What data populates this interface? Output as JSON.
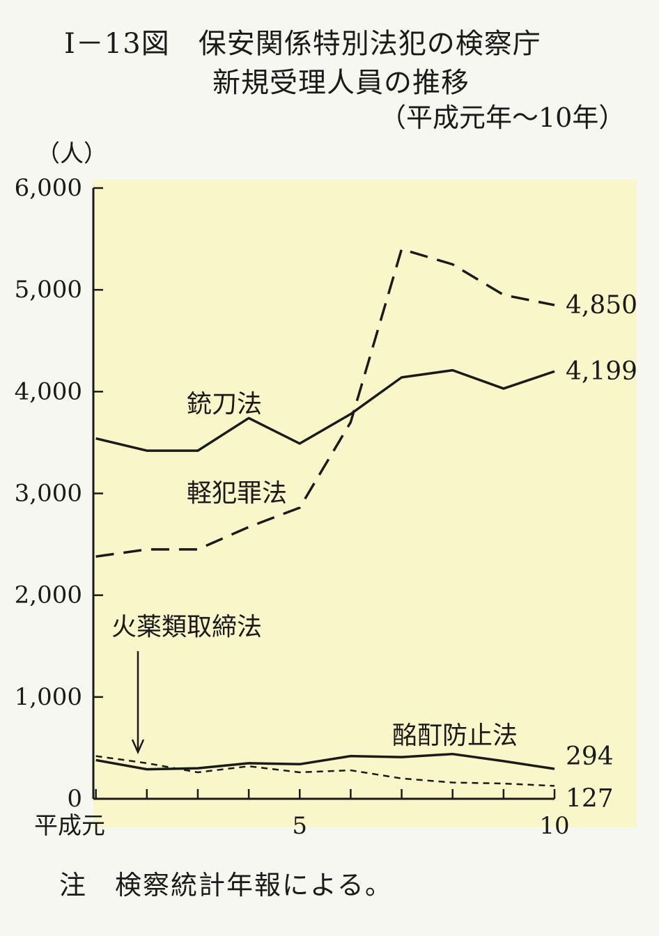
{
  "header": {
    "title_line1": "Ⅰ－13図　保安関係特別法犯の検察庁",
    "title_line2": "新規受理人員の推移",
    "subtitle": "（平成元年～10年）"
  },
  "note": "注　検察統計年報による。",
  "colors": {
    "plot_background": "#f9f6c9",
    "line": "#1a1a1a"
  },
  "chart_data": {
    "type": "line",
    "ylabel": "（人）",
    "ylim": [
      0,
      6000
    ],
    "yticks": [
      0,
      1000,
      2000,
      3000,
      4000,
      5000,
      6000
    ],
    "ytick_labels": [
      "0",
      "1,000",
      "2,000",
      "3,000",
      "4,000",
      "5,000",
      "6,000"
    ],
    "x": [
      1,
      2,
      3,
      4,
      5,
      6,
      7,
      8,
      9,
      10
    ],
    "xtick_labels": [
      {
        "x": 1,
        "label": "平成元"
      },
      {
        "x": 5,
        "label": "5"
      },
      {
        "x": 10,
        "label": "10"
      }
    ],
    "series": [
      {
        "name": "銃刀法",
        "style": "solid",
        "values": [
          3540,
          3420,
          3420,
          3740,
          3490,
          3780,
          4140,
          4210,
          4030,
          4199
        ],
        "end_label": "4,199"
      },
      {
        "name": "軽犯罪法",
        "style": "dashed",
        "values": [
          2380,
          2450,
          2450,
          2670,
          2860,
          3700,
          5400,
          5250,
          4950,
          4850
        ],
        "end_label": "4,850"
      },
      {
        "name": "火薬類取締法",
        "style": "dotted",
        "values": [
          420,
          350,
          260,
          320,
          260,
          280,
          200,
          160,
          150,
          127
        ],
        "end_label": "127"
      },
      {
        "name": "酩酊防止法",
        "style": "solid",
        "values": [
          380,
          290,
          300,
          350,
          340,
          420,
          410,
          440,
          370,
          294
        ],
        "end_label": "294"
      }
    ],
    "grid": false,
    "legend": "none"
  }
}
